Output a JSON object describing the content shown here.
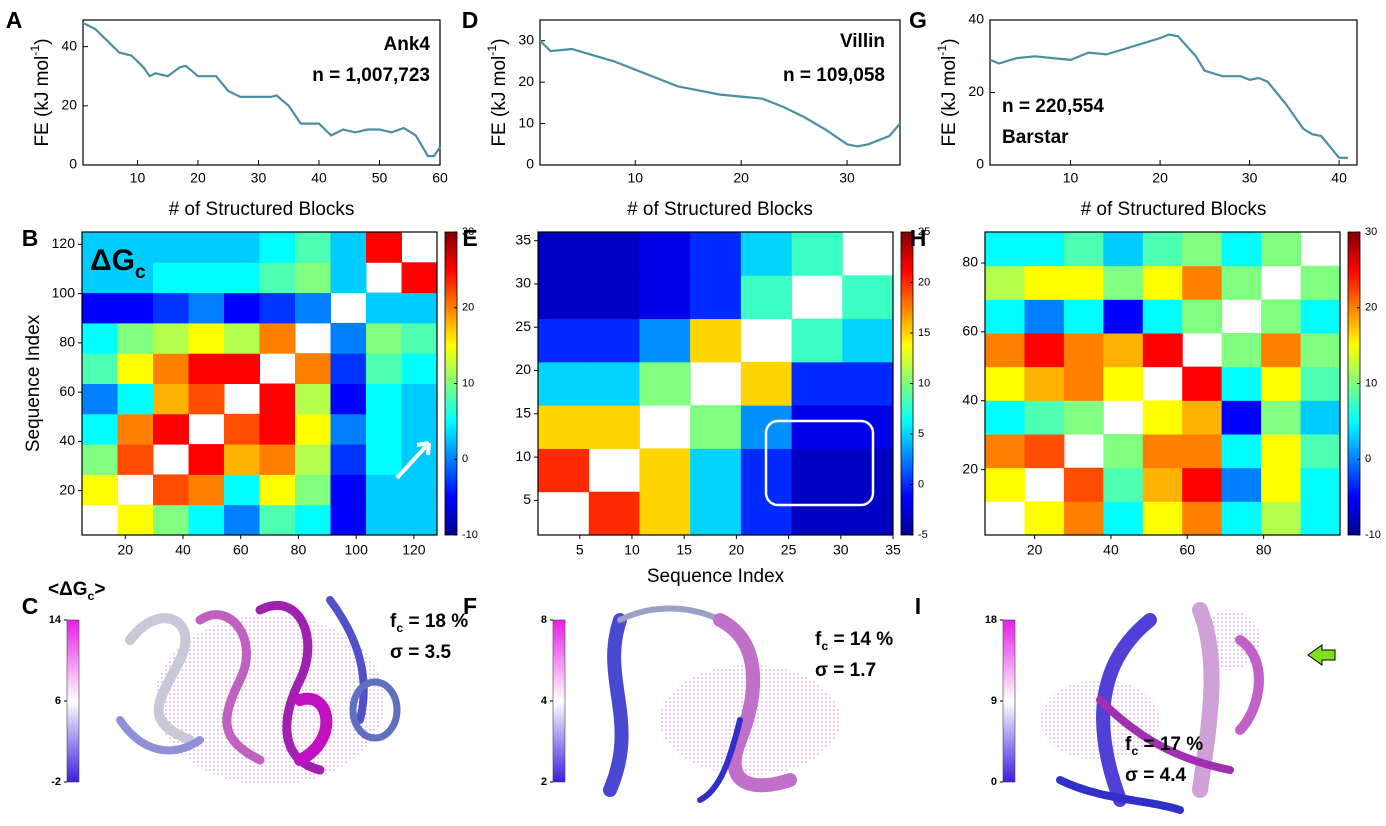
{
  "chart_data": [
    {
      "type": "line",
      "panel_label": "A",
      "name": "Ank4",
      "n_label": "n = 1,007,723",
      "color": "#4a8fa3",
      "y_label": {
        "base": "FE (kJ mol",
        "sup": "-1",
        "end": ")"
      },
      "x_label": "# of Structured Blocks",
      "x": [
        1,
        3,
        5,
        7,
        9,
        11,
        12,
        13,
        15,
        17,
        18,
        20,
        23,
        25,
        27,
        29,
        32,
        33,
        35,
        37,
        40,
        42,
        44,
        46,
        48,
        50,
        52,
        54,
        56,
        58,
        59,
        60
      ],
      "values": [
        48,
        46,
        42,
        38,
        37,
        33,
        30,
        31,
        30,
        33,
        33.5,
        30,
        30,
        25,
        23,
        23,
        23,
        23.5,
        20,
        14,
        14,
        10,
        12,
        11,
        12,
        12,
        11,
        12.5,
        10,
        3,
        3,
        6
      ],
      "xlim": [
        1,
        60
      ],
      "ylim": [
        0,
        49
      ],
      "xticks": [
        10,
        20,
        30,
        40,
        50,
        60
      ],
      "yticks": [
        0,
        20,
        40
      ]
    },
    {
      "type": "line",
      "panel_label": "D",
      "name": "Villin",
      "n_label": "n = 109,058",
      "color": "#4a8fa3",
      "y_label": {
        "base": "FE (kJ mol",
        "sup": "-1",
        "end": ")"
      },
      "x_label": "# of Structured Blocks",
      "x": [
        1,
        2,
        4,
        6,
        8,
        10,
        12,
        14,
        16,
        18,
        20,
        22,
        24,
        26,
        28,
        30,
        31,
        32,
        34,
        35
      ],
      "values": [
        30,
        27.5,
        28,
        26.5,
        25,
        23,
        21,
        19,
        18,
        17,
        16.5,
        16,
        14,
        11.5,
        8.5,
        5,
        4.5,
        5,
        7,
        10
      ],
      "xlim": [
        1,
        35
      ],
      "ylim": [
        0,
        35
      ],
      "xticks": [
        10,
        20,
        30
      ],
      "yticks": [
        0,
        10,
        20,
        30
      ]
    },
    {
      "type": "line",
      "panel_label": "G",
      "name": "Barstar",
      "n_label": "n = 220,554",
      "color": "#4a8fa3",
      "y_label": {
        "base": "FE (kJ mol",
        "sup": "-1",
        "end": ")"
      },
      "x_label": "# of Structured Blocks",
      "x": [
        1,
        2,
        4,
        6,
        8,
        10,
        12,
        14,
        16,
        18,
        20,
        21,
        22,
        24,
        25,
        27,
        29,
        30,
        31,
        32,
        34,
        36,
        37,
        38,
        40,
        41
      ],
      "values": [
        29,
        28,
        29.5,
        30,
        29.5,
        29,
        31,
        30.5,
        32,
        33.5,
        35,
        36,
        35.5,
        30,
        26,
        24.5,
        24.5,
        23.5,
        24,
        23,
        17,
        10,
        8.5,
        8,
        2,
        2
      ],
      "xlim": [
        1,
        42
      ],
      "ylim": [
        0,
        40
      ],
      "xticks": [
        10,
        20,
        30,
        40
      ],
      "yticks": [
        0,
        20,
        40
      ]
    },
    {
      "type": "heatmap",
      "panel_label": "B",
      "y_label": "Sequence Index",
      "annotation": {
        "base": "ΔG",
        "sub": "c"
      },
      "xlim": [
        5,
        128
      ],
      "ylim": [
        2,
        125
      ],
      "xticks": [
        20,
        40,
        60,
        80,
        100,
        120
      ],
      "yticks": [
        20,
        40,
        60,
        80,
        100,
        120
      ],
      "clim": [
        -10,
        30
      ],
      "cticks": [
        -10,
        0,
        10,
        20,
        30
      ],
      "values": [
        [
          null,
          15,
          10,
          5,
          0,
          8,
          5,
          -5,
          3,
          3
        ],
        [
          15,
          null,
          22,
          20,
          5,
          15,
          10,
          -5,
          3,
          3
        ],
        [
          10,
          22,
          null,
          25,
          18,
          20,
          12,
          -3,
          5,
          3
        ],
        [
          5,
          20,
          25,
          null,
          22,
          25,
          15,
          0,
          5,
          3
        ],
        [
          0,
          5,
          18,
          22,
          null,
          25,
          12,
          -5,
          5,
          3
        ],
        [
          8,
          15,
          20,
          25,
          25,
          null,
          20,
          -3,
          8,
          5
        ],
        [
          5,
          10,
          12,
          15,
          12,
          20,
          null,
          0,
          10,
          8
        ],
        [
          -5,
          -5,
          -3,
          0,
          -5,
          -3,
          0,
          null,
          3,
          3
        ],
        [
          3,
          3,
          5,
          5,
          5,
          8,
          10,
          3,
          null,
          25
        ],
        [
          3,
          3,
          3,
          3,
          3,
          5,
          8,
          3,
          25,
          null
        ]
      ]
    },
    {
      "type": "heatmap",
      "panel_label": "E",
      "x_label": "Sequence Index",
      "xlim": [
        1,
        35
      ],
      "ylim": [
        1,
        36
      ],
      "xticks": [
        5,
        10,
        15,
        20,
        25,
        30,
        35
      ],
      "yticks": [
        5,
        10,
        15,
        20,
        25,
        30,
        35
      ],
      "clim": [
        -5,
        25
      ],
      "cticks": [
        -5,
        0,
        5,
        10,
        15,
        20,
        25
      ],
      "values": [
        [
          null,
          20,
          15,
          5,
          0,
          -3,
          -3
        ],
        [
          20,
          null,
          15,
          5,
          0,
          -3,
          -3
        ],
        [
          15,
          15,
          null,
          10,
          3,
          -2,
          -2
        ],
        [
          5,
          5,
          10,
          null,
          15,
          0,
          0
        ],
        [
          0,
          0,
          3,
          15,
          null,
          8,
          5
        ],
        [
          -3,
          -3,
          -2,
          0,
          8,
          null,
          8
        ],
        [
          -3,
          -3,
          -2,
          0,
          5,
          8,
          null
        ]
      ]
    },
    {
      "type": "heatmap",
      "panel_label": "H",
      "xlim": [
        7,
        100
      ],
      "ylim": [
        1,
        89
      ],
      "xticks": [
        20,
        40,
        60,
        80
      ],
      "yticks": [
        20,
        40,
        60,
        80
      ],
      "clim": [
        -10,
        30
      ],
      "cticks": [
        -10,
        0,
        10,
        20,
        30
      ],
      "values": [
        [
          null,
          15,
          20,
          5,
          15,
          20,
          5,
          12,
          5
        ],
        [
          15,
          null,
          22,
          8,
          18,
          25,
          0,
          15,
          5
        ],
        [
          20,
          22,
          null,
          10,
          20,
          20,
          5,
          15,
          8
        ],
        [
          5,
          8,
          10,
          null,
          15,
          18,
          -5,
          10,
          3
        ],
        [
          15,
          18,
          20,
          15,
          null,
          25,
          5,
          15,
          8
        ],
        [
          20,
          25,
          20,
          18,
          25,
          null,
          10,
          20,
          10
        ],
        [
          5,
          0,
          5,
          -5,
          5,
          10,
          null,
          10,
          5
        ],
        [
          12,
          15,
          15,
          10,
          15,
          20,
          10,
          null,
          10
        ],
        [
          5,
          5,
          8,
          3,
          8,
          10,
          5,
          10,
          null
        ]
      ]
    },
    {
      "type": "structure",
      "panel_label": "C",
      "title": {
        "base": "<ΔG",
        "sub": "c",
        "end": ">"
      },
      "fc": {
        "base": "f",
        "sub": "c",
        "text": " = 18 %"
      },
      "sigma": "σ = 3.5",
      "cticks": [
        14,
        6,
        -2
      ]
    },
    {
      "type": "structure",
      "panel_label": "F",
      "fc": {
        "base": "f",
        "sub": "c",
        "text": " = 14 %"
      },
      "sigma": "σ = 1.7",
      "cticks": [
        8,
        4,
        2
      ]
    },
    {
      "type": "structure",
      "panel_label": "I",
      "fc": {
        "base": "f",
        "sub": "c",
        "text": " = 17 %"
      },
      "sigma": "σ = 4.4",
      "cticks": [
        18,
        9,
        0
      ]
    }
  ]
}
